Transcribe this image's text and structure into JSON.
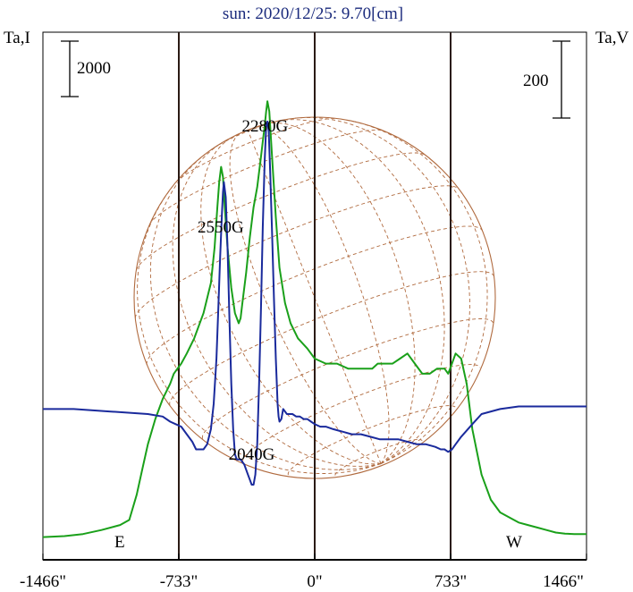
{
  "chart_data": {
    "type": "line",
    "title": "sun: 2020/12/25: 9.70[cm]",
    "left_axis_label": "Ta,I",
    "right_axis_label": "Ta,V",
    "left_scale_label": "2000",
    "right_scale_label": "200",
    "x_tick_labels": [
      "-1466\"",
      "-733\"",
      "0\"",
      "733\"",
      "1466\""
    ],
    "x_ticks": [
      -1466,
      -733,
      0,
      733,
      1466
    ],
    "xlim": [
      -1466,
      1466
    ],
    "limb_labels": {
      "east": "E",
      "west": "W"
    },
    "limb_positions": [
      -733,
      733
    ],
    "annotations": [
      {
        "text": "2280G",
        "x": -268,
        "y": 0.81
      },
      {
        "text": "2550G",
        "x": -507,
        "y": 0.61
      },
      {
        "text": "2040G",
        "x": -340,
        "y": 0.16
      }
    ],
    "colors": {
      "I": "#1aa01a",
      "V": "#1a2a9c",
      "disk": "#b06a3e",
      "frame": "#000000",
      "title": "#1a2a7c"
    },
    "series": [
      {
        "key": "I",
        "x": [
          -1466,
          -1350,
          -1250,
          -1150,
          -1050,
          -1000,
          -960,
          -930,
          -900,
          -860,
          -820,
          -780,
          -760,
          -740,
          -720,
          -690,
          -650,
          -600,
          -560,
          -540,
          -525,
          -515,
          -505,
          -495,
          -485,
          -470,
          -450,
          -430,
          -410,
          -400,
          -390,
          -370,
          -350,
          -330,
          -310,
          -300,
          -290,
          -280,
          -270,
          -262,
          -255,
          -245,
          -230,
          -210,
          -190,
          -160,
          -130,
          -90,
          -40,
          0,
          60,
          120,
          180,
          250,
          310,
          340,
          380,
          420,
          460,
          500,
          540,
          580,
          620,
          660,
          700,
          720,
          740,
          760,
          790,
          820,
          850,
          900,
          950,
          1000,
          1050,
          1100,
          1150,
          1200,
          1250,
          1300,
          1350,
          1400,
          1466
        ],
        "y": [
          0.006,
          0.008,
          0.012,
          0.02,
          0.03,
          0.04,
          0.09,
          0.14,
          0.19,
          0.24,
          0.28,
          0.31,
          0.33,
          0.34,
          0.35,
          0.37,
          0.4,
          0.45,
          0.51,
          0.58,
          0.66,
          0.71,
          0.74,
          0.72,
          0.66,
          0.58,
          0.5,
          0.45,
          0.43,
          0.44,
          0.47,
          0.53,
          0.6,
          0.66,
          0.7,
          0.73,
          0.76,
          0.79,
          0.82,
          0.85,
          0.87,
          0.85,
          0.76,
          0.64,
          0.54,
          0.47,
          0.43,
          0.4,
          0.38,
          0.36,
          0.35,
          0.35,
          0.34,
          0.34,
          0.34,
          0.35,
          0.35,
          0.35,
          0.36,
          0.37,
          0.35,
          0.33,
          0.33,
          0.34,
          0.34,
          0.33,
          0.35,
          0.37,
          0.36,
          0.31,
          0.22,
          0.13,
          0.08,
          0.055,
          0.045,
          0.035,
          0.03,
          0.025,
          0.02,
          0.015,
          0.013,
          0.012,
          0.012
        ]
      },
      {
        "key": "V",
        "x": [
          -1466,
          -1300,
          -1100,
          -900,
          -820,
          -780,
          -750,
          -720,
          -690,
          -660,
          -640,
          -620,
          -600,
          -580,
          -560,
          -545,
          -530,
          -520,
          -510,
          -500,
          -495,
          -490,
          -480,
          -470,
          -460,
          -450,
          -440,
          -430,
          -420,
          -400,
          -380,
          -360,
          -350,
          -340,
          -330,
          -320,
          -310,
          -300,
          -290,
          -280,
          -270,
          -262,
          -255,
          -248,
          -240,
          -230,
          -220,
          -210,
          -200,
          -195,
          -190,
          -180,
          -170,
          -150,
          -120,
          -100,
          -80,
          -60,
          -40,
          -20,
          0,
          30,
          60,
          100,
          150,
          200,
          250,
          300,
          350,
          400,
          450,
          500,
          550,
          600,
          650,
          680,
          700,
          720,
          740,
          760,
          790,
          850,
          900,
          1000,
          1100,
          1200,
          1300,
          1466
        ],
        "y": [
          0.26,
          0.26,
          0.255,
          0.25,
          0.245,
          0.235,
          0.23,
          0.225,
          0.21,
          0.195,
          0.18,
          0.18,
          0.18,
          0.19,
          0.22,
          0.27,
          0.36,
          0.46,
          0.56,
          0.65,
          0.69,
          0.71,
          0.68,
          0.58,
          0.44,
          0.31,
          0.22,
          0.17,
          0.16,
          0.16,
          0.15,
          0.13,
          0.12,
          0.11,
          0.11,
          0.13,
          0.19,
          0.31,
          0.46,
          0.62,
          0.75,
          0.82,
          0.83,
          0.81,
          0.73,
          0.61,
          0.48,
          0.36,
          0.27,
          0.245,
          0.235,
          0.24,
          0.26,
          0.25,
          0.25,
          0.245,
          0.245,
          0.24,
          0.24,
          0.235,
          0.23,
          0.225,
          0.225,
          0.22,
          0.215,
          0.21,
          0.21,
          0.205,
          0.2,
          0.2,
          0.2,
          0.195,
          0.19,
          0.19,
          0.185,
          0.18,
          0.18,
          0.175,
          0.18,
          0.19,
          0.205,
          0.23,
          0.25,
          0.26,
          0.265,
          0.265,
          0.265,
          0.265
        ]
      }
    ]
  }
}
